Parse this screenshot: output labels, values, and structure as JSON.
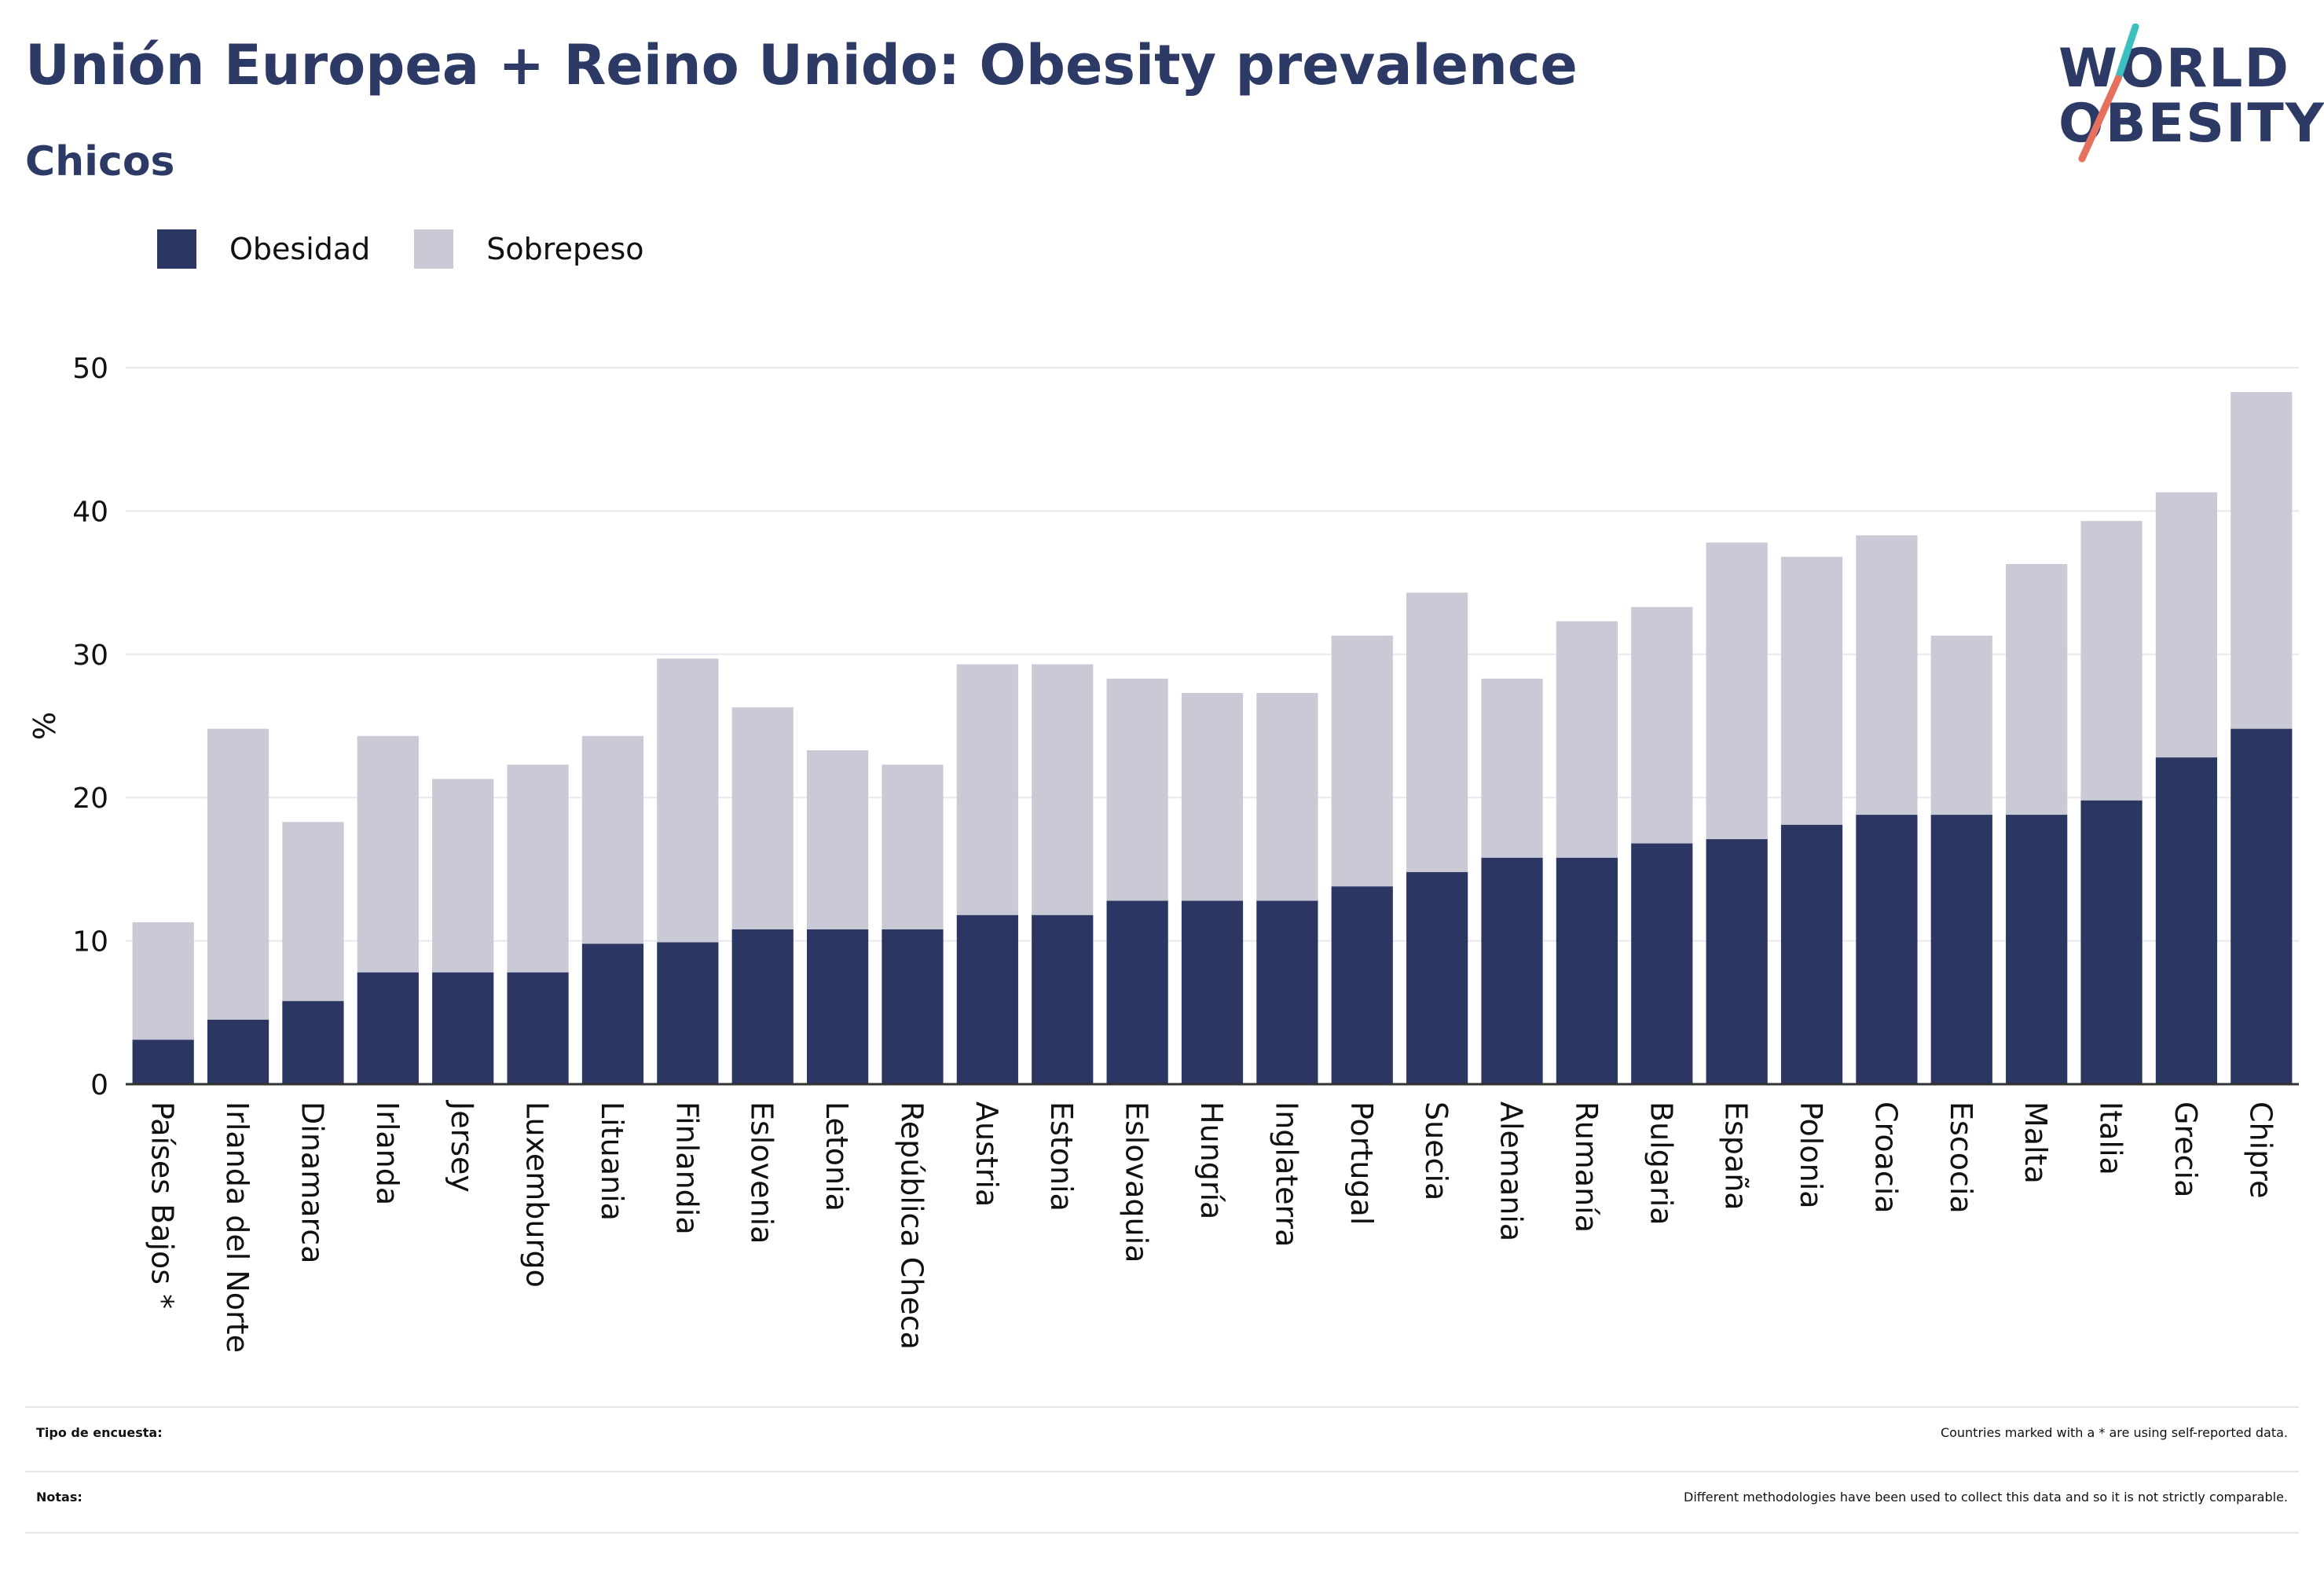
{
  "header": {
    "title": "Unión Europea + Reino Unido: Obesity prevalence",
    "subtitle": "Chicos"
  },
  "logo": {
    "line1": "WORLD",
    "line2": "OBESITY",
    "primary_color": "#2d3a66",
    "slash_colors": [
      "#3bbfbf",
      "#e5705e"
    ]
  },
  "legend": {
    "items": [
      {
        "label": "Obesidad",
        "color": "#2c3663"
      },
      {
        "label": "Sobrepeso",
        "color": "#c9cad6"
      }
    ]
  },
  "chart_data": {
    "type": "bar",
    "stacked": true,
    "title": "Unión Europea + Reino Unido: Obesity prevalence",
    "subtitle": "Chicos",
    "xlabel": "",
    "ylabel": "%",
    "ylim": [
      0,
      50
    ],
    "yticks": [
      0,
      10,
      20,
      30,
      40,
      50
    ],
    "grid": true,
    "legend_position": "top-left",
    "categories": [
      "Países Bajos *",
      "Irlanda del Norte",
      "Dinamarca",
      "Irlanda",
      "Jersey",
      "Luxemburgo",
      "Lituania",
      "Finlandia",
      "Eslovenia",
      "Letonia",
      "República Checa",
      "Austria",
      "Estonia",
      "Eslovaquia",
      "Hungría",
      "Inglaterra",
      "Portugal",
      "Suecia",
      "Alemania",
      "Rumanía",
      "Bulgaria",
      "España",
      "Polonia",
      "Croacia",
      "Escocia",
      "Malta",
      "Italia",
      "Grecia",
      "Chipre"
    ],
    "series": [
      {
        "name": "Obesidad",
        "color": "#2c3663",
        "values": [
          3.1,
          4.5,
          5.8,
          7.8,
          7.8,
          7.8,
          9.8,
          9.9,
          10.8,
          10.8,
          10.8,
          11.8,
          11.8,
          12.8,
          12.8,
          12.8,
          13.8,
          14.8,
          15.8,
          15.8,
          16.8,
          17.1,
          18.1,
          18.8,
          18.8,
          18.8,
          19.8,
          22.8,
          24.8
        ]
      },
      {
        "name": "Sobrepeso",
        "color": "#c9cad6",
        "values": [
          8.2,
          20.3,
          12.5,
          16.5,
          13.5,
          14.5,
          14.5,
          19.8,
          15.5,
          12.5,
          11.5,
          17.5,
          17.5,
          15.5,
          14.5,
          14.5,
          17.5,
          19.5,
          12.5,
          16.5,
          16.5,
          20.7,
          18.7,
          19.5,
          12.5,
          17.5,
          19.5,
          18.5,
          23.5
        ]
      }
    ]
  },
  "notes": [
    {
      "key": "Tipo de encuesta:",
      "value": "Countries marked with a * are using self-reported data."
    },
    {
      "key": "Notas:",
      "value": "Different methodologies have been used to collect this data and so it is not strictly comparable."
    }
  ]
}
